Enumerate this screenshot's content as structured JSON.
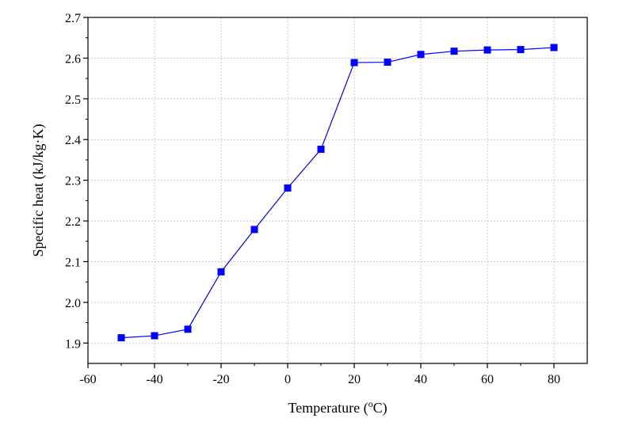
{
  "chart_data": {
    "type": "line",
    "xlabel": "Temperature  (",
    "xlabel_unit_sup": "o",
    "xlabel_unit": "C)",
    "ylabel": "Specific heat (kJ/kg·K)",
    "xlim": [
      -60,
      90
    ],
    "ylim": [
      1.85,
      2.7
    ],
    "x_ticks": [
      -60,
      -40,
      -20,
      0,
      20,
      40,
      60,
      80
    ],
    "x_tick_labels": [
      "-60",
      "-40",
      "-20",
      "0",
      "20",
      "40",
      "60",
      "80"
    ],
    "y_ticks": [
      1.9,
      2.0,
      2.1,
      2.2,
      2.3,
      2.4,
      2.5,
      2.6,
      2.7
    ],
    "y_tick_labels": [
      "1.9",
      "2.0",
      "2.1",
      "2.2",
      "2.3",
      "2.4",
      "2.5",
      "2.6",
      "2.7"
    ],
    "grid": true,
    "series": [
      {
        "color": "#0000ff",
        "marker": "square",
        "x": [
          -50,
          -40,
          -30,
          -20,
          -10,
          0,
          10,
          20,
          30,
          40,
          50,
          60,
          70,
          80
        ],
        "y": [
          1.913,
          1.918,
          1.934,
          2.075,
          2.179,
          2.281,
          2.376,
          2.589,
          2.59,
          2.609,
          2.617,
          2.62,
          2.621,
          2.626
        ]
      }
    ]
  }
}
